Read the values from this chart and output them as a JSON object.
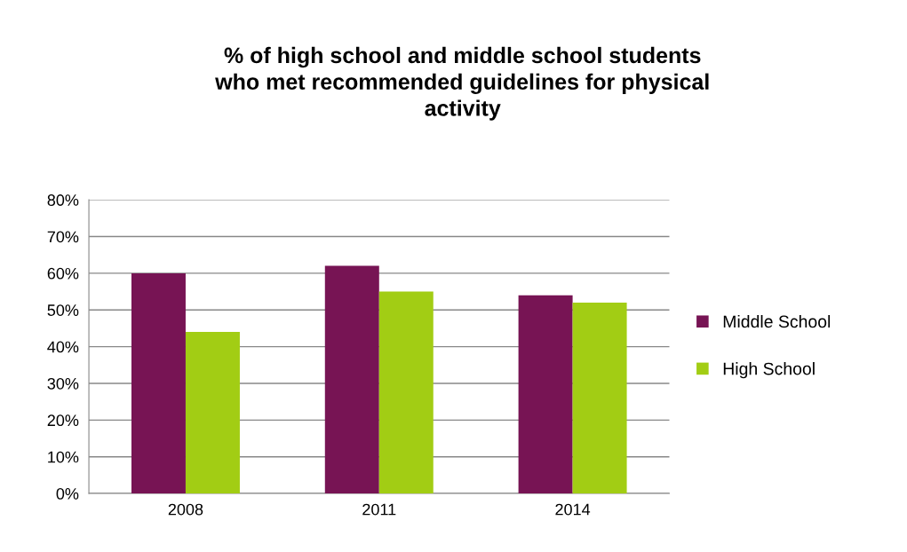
{
  "chart_data": {
    "type": "bar",
    "title": "% of high school and middle school students\nwho met recommended guidelines for physical\nactivity",
    "categories": [
      "2008",
      "2011",
      "2014"
    ],
    "series": [
      {
        "name": "Middle School",
        "color": "#771454",
        "values": [
          60,
          62,
          54
        ]
      },
      {
        "name": "High School",
        "color": "#a2cd14",
        "values": [
          44,
          55,
          52
        ]
      }
    ],
    "ylim": [
      0,
      80
    ],
    "yticks": [
      {
        "value": 0,
        "label": "0%"
      },
      {
        "value": 10,
        "label": "10%"
      },
      {
        "value": 20,
        "label": "20%"
      },
      {
        "value": 30,
        "label": "30%"
      },
      {
        "value": 40,
        "label": "40%"
      },
      {
        "value": 50,
        "label": "50%"
      },
      {
        "value": 60,
        "label": "60%"
      },
      {
        "value": 70,
        "label": "70%"
      },
      {
        "value": 80,
        "label": "80%"
      }
    ],
    "grid": "y",
    "legend": "right"
  }
}
